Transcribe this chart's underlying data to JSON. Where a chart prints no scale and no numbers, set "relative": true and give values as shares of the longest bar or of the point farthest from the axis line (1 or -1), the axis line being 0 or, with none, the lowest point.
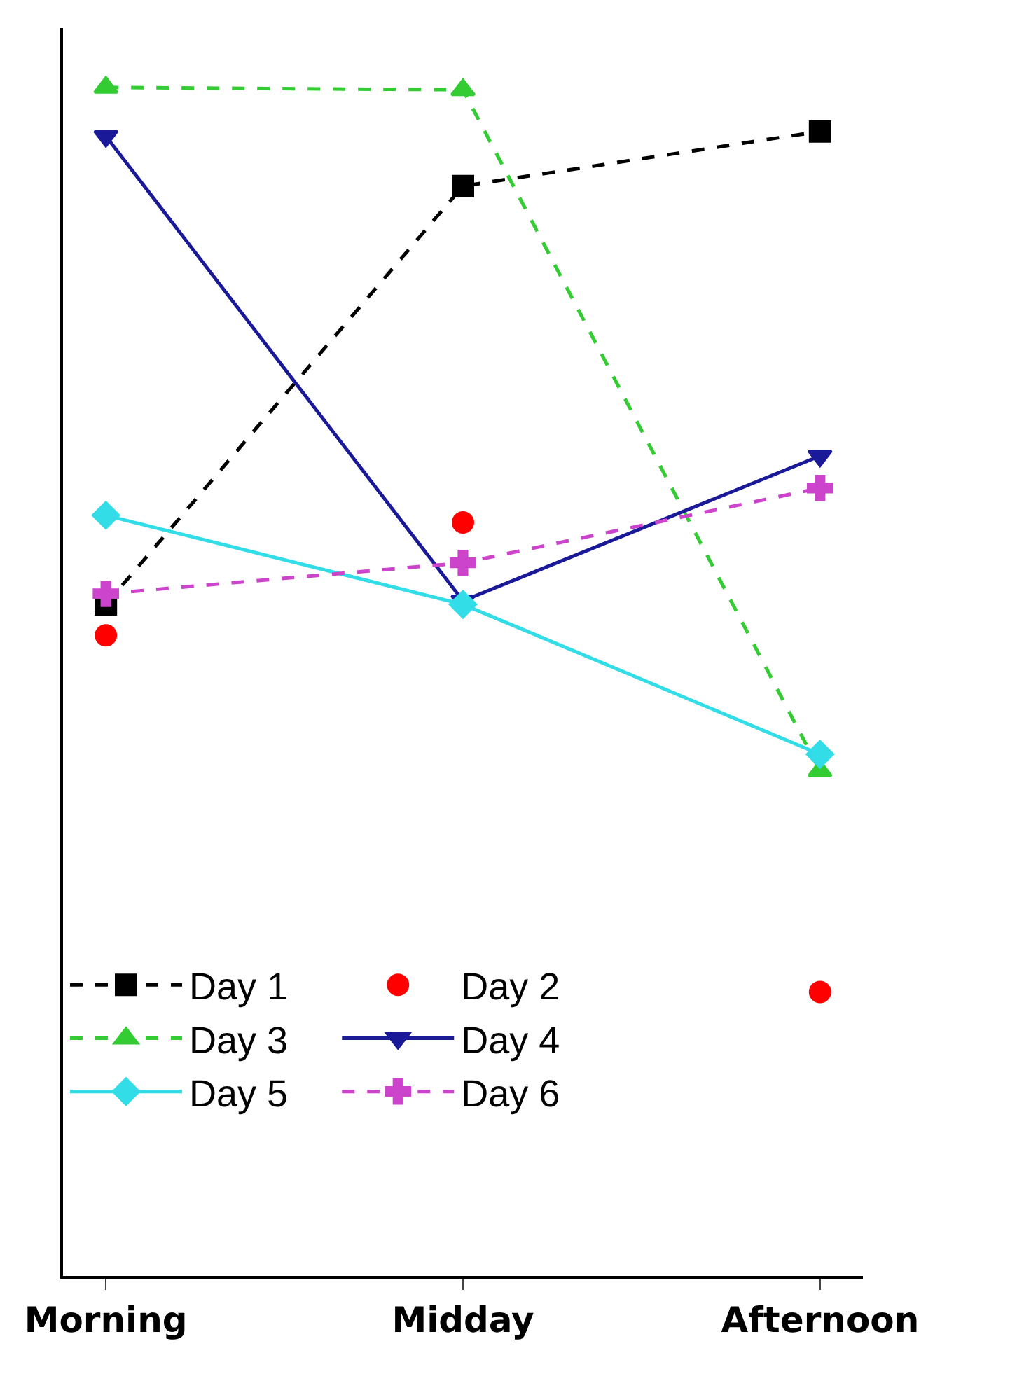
{
  "chart_data": {
    "type": "line",
    "relative": true,
    "categories": [
      "Morning",
      "Midday",
      "Afternoon"
    ],
    "series": [
      {
        "name": "Day 1",
        "color": "#000000",
        "marker": "square",
        "line_style": "dashed",
        "values": [
          0.565,
          0.917,
          0.963
        ]
      },
      {
        "name": "Day 2",
        "color": "#ff0000",
        "type": "scatter",
        "marker": "circle",
        "values": [
          0.539,
          0.634,
          0.239
        ]
      },
      {
        "name": "Day 3",
        "color": "#33cc33",
        "marker": "triangle",
        "line_style": "dashed",
        "values": [
          1,
          0.998,
          0.425
        ]
      },
      {
        "name": "Day 4",
        "color": "#1a1a99",
        "marker": "triangle-down",
        "line_style": "solid",
        "values": [
          0.959,
          0.568,
          0.69
        ]
      },
      {
        "name": "Day 5",
        "color": "#33dde8",
        "marker": "diamond",
        "line_style": "solid",
        "values": [
          0.64,
          0.565,
          0.439
        ]
      },
      {
        "name": "Day 6",
        "color": "#cc44cc",
        "marker": "cross",
        "line_style": "dashed",
        "values": [
          0.574,
          0.6,
          0.663
        ]
      }
    ],
    "legend": "bottom left"
  }
}
